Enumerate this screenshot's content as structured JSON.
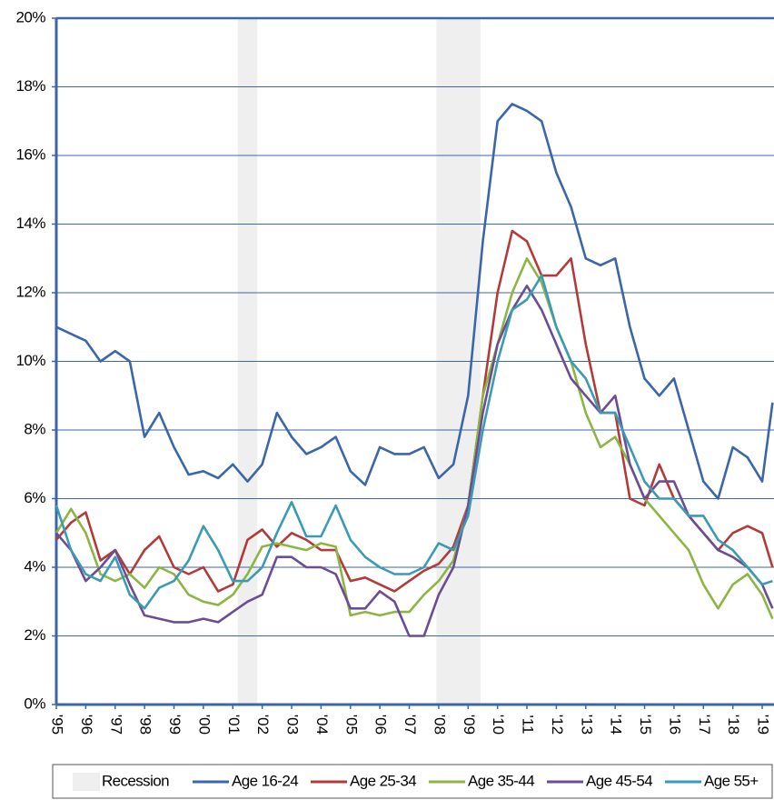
{
  "chart_data": {
    "type": "line",
    "x": [
      1995,
      1995.5,
      1996,
      1996.5,
      1997,
      1997.5,
      1998,
      1998.5,
      1999,
      1999.5,
      2000,
      2000.5,
      2001,
      2001.5,
      2002,
      2002.5,
      2003,
      2003.5,
      2004,
      2004.5,
      2005,
      2005.5,
      2006,
      2006.5,
      2007,
      2007.5,
      2008,
      2008.5,
      2009,
      2009.5,
      2010,
      2010.5,
      2011,
      2011.5,
      2012,
      2012.5,
      2013,
      2013.5,
      2014,
      2014.5,
      2015,
      2015.5,
      2016,
      2016.5,
      2017,
      2017.5,
      2018,
      2018.5,
      2019,
      2019.35
    ],
    "series": [
      {
        "name": "Age 16-24",
        "color": "#3b66a8",
        "values": [
          11.0,
          10.8,
          10.6,
          10.0,
          10.3,
          10.0,
          7.8,
          8.5,
          7.5,
          6.7,
          6.8,
          6.6,
          7.0,
          6.5,
          7.0,
          8.5,
          7.8,
          7.3,
          7.5,
          7.8,
          6.8,
          6.4,
          7.5,
          7.3,
          7.3,
          7.5,
          6.6,
          7.0,
          9.0,
          13.5,
          17.0,
          17.5,
          17.3,
          17.0,
          15.5,
          14.5,
          13.0,
          12.8,
          13.0,
          11.0,
          9.5,
          9.0,
          9.5,
          8.0,
          6.5,
          6.0,
          7.5,
          7.2,
          6.5,
          8.8
        ]
      },
      {
        "name": "Age 25-34",
        "color": "#b23b3a",
        "values": [
          4.8,
          5.3,
          5.6,
          4.2,
          4.5,
          3.8,
          4.5,
          4.9,
          4.0,
          3.8,
          4.0,
          3.3,
          3.5,
          4.8,
          5.1,
          4.6,
          5.0,
          4.8,
          4.5,
          4.5,
          3.6,
          3.7,
          3.5,
          3.3,
          3.6,
          3.9,
          4.1,
          4.6,
          5.8,
          9.0,
          12.0,
          13.8,
          13.5,
          12.5,
          12.5,
          13.0,
          10.5,
          8.5,
          8.5,
          6.0,
          5.8,
          7.0,
          6.0,
          5.5,
          5.0,
          4.5,
          5.0,
          5.2,
          5.0,
          4.0
        ]
      },
      {
        "name": "Age 35-44",
        "color": "#8db543",
        "values": [
          5.0,
          5.7,
          5.0,
          3.8,
          3.6,
          3.8,
          3.4,
          4.0,
          3.8,
          3.2,
          3.0,
          2.9,
          3.2,
          3.8,
          4.6,
          4.7,
          4.6,
          4.5,
          4.7,
          4.6,
          2.6,
          2.7,
          2.6,
          2.7,
          2.7,
          3.2,
          3.6,
          4.2,
          5.8,
          9.0,
          10.5,
          12.0,
          13.0,
          12.3,
          11.0,
          10.0,
          8.5,
          7.5,
          7.8,
          7.0,
          6.0,
          5.5,
          5.0,
          4.5,
          3.5,
          2.8,
          3.5,
          3.8,
          3.2,
          2.5
        ]
      },
      {
        "name": "Age 45-54",
        "color": "#6b4d93",
        "values": [
          5.0,
          4.5,
          3.6,
          4.0,
          4.5,
          3.5,
          2.6,
          2.5,
          2.4,
          2.4,
          2.5,
          2.4,
          2.7,
          3.0,
          3.2,
          4.3,
          4.3,
          4.0,
          4.0,
          3.8,
          2.8,
          2.8,
          3.3,
          3.0,
          2.0,
          2.0,
          3.2,
          4.0,
          5.8,
          8.5,
          10.5,
          11.5,
          12.2,
          11.5,
          10.5,
          9.5,
          9.0,
          8.5,
          9.0,
          7.0,
          6.0,
          6.5,
          6.5,
          5.5,
          5.0,
          4.5,
          4.3,
          4.0,
          3.5,
          2.8
        ]
      },
      {
        "name": "Age 55+",
        "color": "#3b9ab5",
        "values": [
          5.8,
          4.5,
          3.8,
          3.6,
          4.3,
          3.2,
          2.8,
          3.4,
          3.6,
          4.2,
          5.2,
          4.5,
          3.6,
          3.6,
          4.0,
          5.0,
          5.9,
          4.9,
          4.9,
          5.8,
          4.8,
          4.3,
          4.0,
          3.8,
          3.8,
          4.0,
          4.7,
          4.5,
          5.5,
          8.0,
          10.0,
          11.5,
          11.8,
          12.5,
          11.0,
          10.0,
          9.5,
          8.5,
          8.5,
          7.5,
          6.5,
          6.0,
          6.0,
          5.5,
          5.5,
          4.8,
          4.5,
          4.0,
          3.5,
          3.6
        ]
      }
    ],
    "recession_label": "Recession",
    "recession_color": "#efefef",
    "recessions": [
      {
        "start": 2001.17,
        "end": 2001.83
      },
      {
        "start": 2007.92,
        "end": 2009.42
      }
    ],
    "xlim": [
      1995,
      2019.4
    ],
    "xticks": [
      {
        "value": 1995,
        "label": "'95"
      },
      {
        "value": 1996,
        "label": "'96"
      },
      {
        "value": 1997,
        "label": "'97"
      },
      {
        "value": 1998,
        "label": "'98"
      },
      {
        "value": 1999,
        "label": "'99"
      },
      {
        "value": 2000,
        "label": "'00"
      },
      {
        "value": 2001,
        "label": "'01"
      },
      {
        "value": 2002,
        "label": "'02"
      },
      {
        "value": 2003,
        "label": "'03"
      },
      {
        "value": 2004,
        "label": "'04"
      },
      {
        "value": 2005,
        "label": "'05"
      },
      {
        "value": 2006,
        "label": "'06"
      },
      {
        "value": 2007,
        "label": "'07"
      },
      {
        "value": 2008,
        "label": "'08"
      },
      {
        "value": 2009,
        "label": "'09"
      },
      {
        "value": 2010,
        "label": "'10"
      },
      {
        "value": 2011,
        "label": "'11"
      },
      {
        "value": 2012,
        "label": "'12"
      },
      {
        "value": 2013,
        "label": "'13"
      },
      {
        "value": 2014,
        "label": "'14"
      },
      {
        "value": 2015,
        "label": "'15"
      },
      {
        "value": 2016,
        "label": "'16"
      },
      {
        "value": 2017,
        "label": "'17"
      },
      {
        "value": 2018,
        "label": "'18"
      },
      {
        "value": 2019,
        "label": "'19"
      }
    ],
    "ylim": [
      0,
      20
    ],
    "yticks": [
      {
        "value": 0,
        "label": "0%"
      },
      {
        "value": 2,
        "label": "2%"
      },
      {
        "value": 4,
        "label": "4%"
      },
      {
        "value": 6,
        "label": "6%"
      },
      {
        "value": 8,
        "label": "8%"
      },
      {
        "value": 10,
        "label": "10%"
      },
      {
        "value": 12,
        "label": "12%"
      },
      {
        "value": 14,
        "label": "14%"
      },
      {
        "value": 16,
        "label": "16%"
      },
      {
        "value": 18,
        "label": "18%"
      },
      {
        "value": 20,
        "label": "20%"
      }
    ],
    "grid": true,
    "grid_color": "#3b66a8",
    "legend": "bottom"
  }
}
